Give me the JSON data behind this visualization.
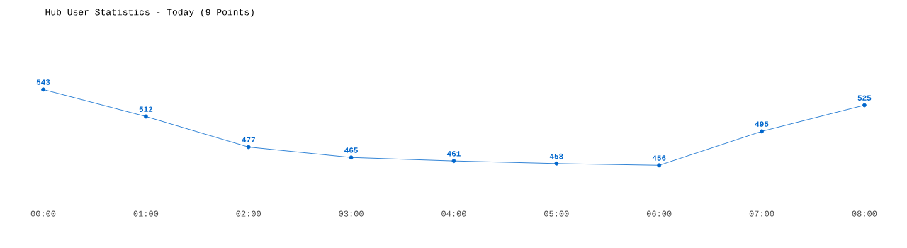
{
  "chart_data": {
    "type": "line",
    "title": "Hub User Statistics - Today (9 Points)",
    "categories": [
      "00:00",
      "01:00",
      "02:00",
      "03:00",
      "04:00",
      "05:00",
      "06:00",
      "07:00",
      "08:00"
    ],
    "values": [
      543,
      512,
      477,
      465,
      461,
      458,
      456,
      495,
      525
    ],
    "color": "#0066cc",
    "marker": "circle",
    "line_style": "solid",
    "data_labels": true,
    "tick_labels": "x"
  }
}
